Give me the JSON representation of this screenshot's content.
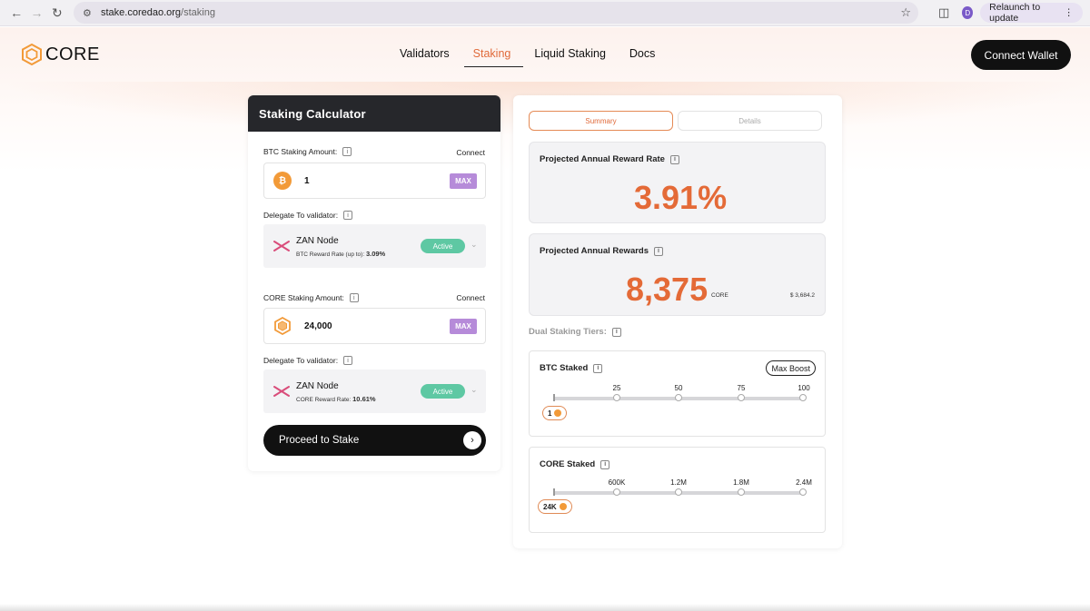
{
  "browser": {
    "url_host": "stake.coredao.org",
    "url_path": "/staking",
    "profile_initial": "D",
    "relaunch_label": "Relaunch to update"
  },
  "header": {
    "logo_text": "CORE",
    "nav": [
      "Validators",
      "Staking",
      "Liquid Staking",
      "Docs"
    ],
    "active_nav": "Staking",
    "connect_wallet": "Connect Wallet"
  },
  "calculator": {
    "title": "Staking Calculator",
    "btc": {
      "amount_label": "BTC Staking Amount:",
      "connect": "Connect",
      "amount": "1",
      "max": "MAX",
      "delegate_label": "Delegate To validator:",
      "validator_name": "ZAN Node",
      "rate_label": "BTC Reward Rate (up to):",
      "rate_value": "3.09%",
      "status": "Active"
    },
    "core": {
      "amount_label": "CORE Staking Amount:",
      "connect": "Connect",
      "amount": "24,000",
      "max": "MAX",
      "delegate_label": "Delegate To validator:",
      "validator_name": "ZAN Node",
      "rate_label": "CORE Reward Rate:",
      "rate_value": "10.61%",
      "status": "Active"
    },
    "proceed": "Proceed to Stake"
  },
  "summary": {
    "tabs": [
      "Summary",
      "Details"
    ],
    "rate_title": "Projected Annual Reward Rate",
    "rate_value": "3.91%",
    "rewards_title": "Projected Annual Rewards",
    "rewards_value": "8,375",
    "rewards_unit": "CORE",
    "rewards_usd": "$ 3,684.2",
    "tiers_label": "Dual Staking Tiers:",
    "btc_tier": {
      "title": "BTC Staked",
      "max_boost": "Max Boost",
      "ticks": [
        "25",
        "50",
        "75",
        "100"
      ],
      "value": "1"
    },
    "core_tier": {
      "title": "CORE Staked",
      "ticks": [
        "600K",
        "1.2M",
        "1.8M",
        "2.4M"
      ],
      "value": "24K"
    }
  },
  "colors": {
    "accent": "#e46a37",
    "active_green": "#5ec8a3",
    "max_purple": "#b68bd9",
    "dark": "#111111"
  }
}
